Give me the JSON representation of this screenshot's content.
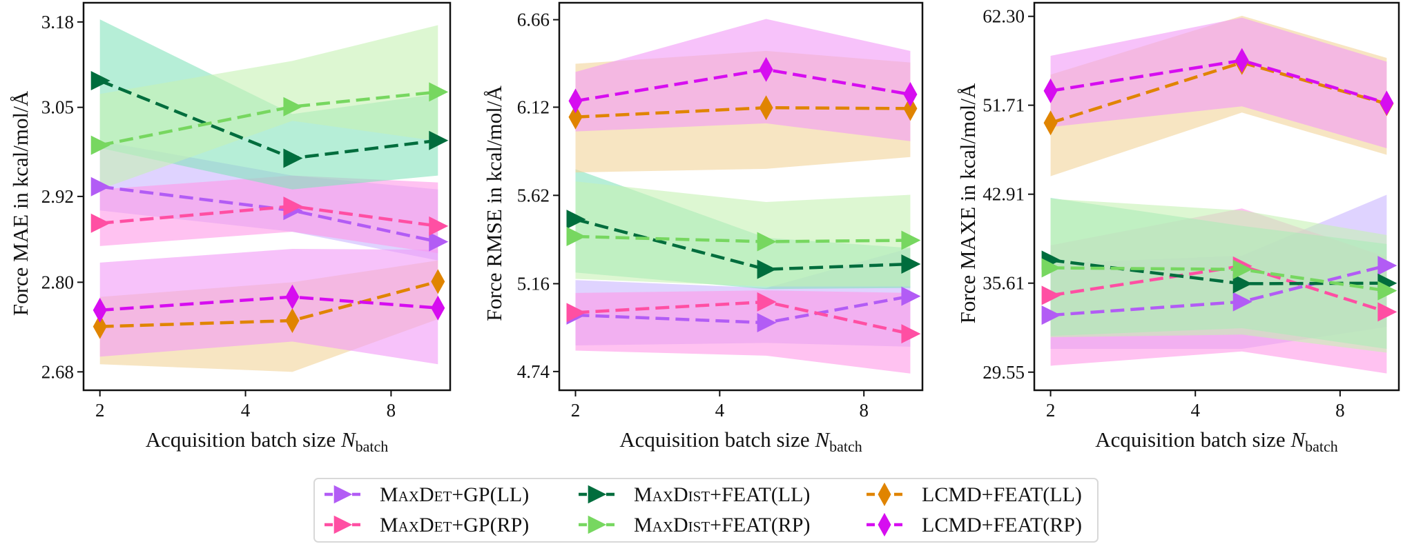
{
  "chart_data": [
    {
      "type": "line",
      "xlabel": {
        "text": "Acquisition batch size ",
        "var": "N",
        "sub": "batch"
      },
      "ylabel": "Force MAE in kcal/mol/Å",
      "x": [
        2,
        5,
        10
      ],
      "xscale": "log",
      "yscale": "log",
      "xticks": [
        "2",
        "4",
        "8"
      ],
      "yticks": [
        "3.18",
        "3.05",
        "2.92",
        "2.80",
        "2.68"
      ],
      "xlim": [
        1.85,
        10.6
      ],
      "ylim": [
        2.656,
        3.21
      ],
      "grid": false,
      "series": [
        {
          "name": "MaxDet+GP(LL)",
          "values": [
            2.934,
            2.9,
            2.856
          ],
          "lower": [
            2.9,
            2.87,
            2.83
          ],
          "upper": [
            3.0,
            2.95,
            2.93
          ]
        },
        {
          "name": "MaxDet+GP(RP)",
          "values": [
            2.882,
            2.906,
            2.878
          ],
          "lower": [
            2.85,
            2.87,
            2.84
          ],
          "upper": [
            2.93,
            2.95,
            2.94
          ]
        },
        {
          "name": "MaxDist+FEAT(LL)",
          "values": [
            3.09,
            2.975,
            3.001
          ],
          "lower": [
            2.99,
            2.93,
            2.95
          ],
          "upper": [
            3.184,
            3.04,
            3.07
          ]
        },
        {
          "name": "MaxDist+FEAT(RP)",
          "values": [
            2.994,
            3.051,
            3.073
          ],
          "lower": [
            2.93,
            3.03,
            3.0
          ],
          "upper": [
            3.07,
            3.12,
            3.175
          ]
        },
        {
          "name": "LCMD+FEAT(LL)",
          "values": [
            2.74,
            2.748,
            2.801
          ],
          "lower": [
            2.69,
            2.68,
            2.75
          ],
          "upper": [
            2.78,
            2.8,
            2.83
          ]
        },
        {
          "name": "LCMD+FEAT(RP)",
          "values": [
            2.762,
            2.78,
            2.765
          ],
          "lower": [
            2.7,
            2.72,
            2.69
          ],
          "upper": [
            2.827,
            2.846,
            2.845
          ]
        }
      ]
    },
    {
      "type": "line",
      "xlabel": {
        "text": "Acquisition batch size ",
        "var": "N",
        "sub": "batch"
      },
      "ylabel": "Force RMSE in kcal/mol/Å",
      "x": [
        2,
        5,
        10
      ],
      "xscale": "log",
      "yscale": "log",
      "xticks": [
        "2",
        "4",
        "8"
      ],
      "yticks": [
        "6.66",
        "6.12",
        "5.62",
        "5.16",
        "4.74"
      ],
      "xlim": [
        1.85,
        10.6
      ],
      "ylim": [
        4.655,
        6.77
      ],
      "grid": false,
      "series": [
        {
          "name": "MaxDet+GP(LL)",
          "values": [
            5.006,
            4.969,
            5.098
          ],
          "lower": [
            4.861,
            4.873,
            4.855
          ],
          "upper": [
            5.178,
            5.139,
            5.341
          ]
        },
        {
          "name": "MaxDet+GP(RP)",
          "values": [
            5.018,
            5.07,
            4.916
          ],
          "lower": [
            4.837,
            4.813,
            4.731
          ],
          "upper": [
            5.114,
            5.127,
            5.114
          ]
        },
        {
          "name": "MaxDist+FEAT(LL)",
          "values": [
            5.491,
            5.232,
            5.259
          ],
          "lower": [
            5.216,
            5.133,
            5.139
          ],
          "upper": [
            5.764,
            5.394,
            5.341
          ]
        },
        {
          "name": "MaxDist+FEAT(RP)",
          "values": [
            5.401,
            5.374,
            5.381
          ],
          "lower": [
            5.184,
            5.146,
            5.146
          ],
          "upper": [
            5.696,
            5.584,
            5.623
          ]
        },
        {
          "name": "LCMD+FEAT(LL)",
          "values": [
            6.062,
            6.117,
            6.112
          ],
          "lower": [
            5.746,
            5.766,
            5.832
          ],
          "upper": [
            6.382,
            6.462,
            6.39
          ]
        },
        {
          "name": "LCMD+FEAT(RP)",
          "values": [
            6.157,
            6.347,
            6.196
          ],
          "lower": [
            5.978,
            6.025,
            5.922
          ],
          "upper": [
            6.332,
            6.665,
            6.462
          ]
        }
      ]
    },
    {
      "type": "line",
      "xlabel": {
        "text": "Acquisition batch size ",
        "var": "N",
        "sub": "batch"
      },
      "ylabel": "Force MAXE in kcal/mol/Å",
      "x": [
        2,
        5,
        10
      ],
      "xscale": "log",
      "yscale": "log",
      "xticks": [
        "2",
        "4",
        "8"
      ],
      "yticks": [
        "62.30",
        "51.71",
        "42.91",
        "35.61",
        "29.55"
      ],
      "xlim": [
        1.85,
        10.6
      ],
      "ylim": [
        28.45,
        64.1
      ],
      "grid": false,
      "series": [
        {
          "name": "MaxDet+GP(LL)",
          "values": [
            33.3,
            34.25,
            36.95
          ],
          "lower": [
            31.03,
            31.03,
            32.49
          ],
          "upper": [
            37.11,
            37.72,
            42.86
          ]
        },
        {
          "name": "MaxDet+GP(RP)",
          "values": [
            34.71,
            36.91,
            33.53
          ],
          "lower": [
            29.95,
            30.86,
            29.47
          ],
          "upper": [
            38.55,
            41.65,
            37.62
          ]
        },
        {
          "name": "MaxDist+FEAT(LL)",
          "values": [
            37.37,
            35.57,
            35.61
          ],
          "lower": [
            31.88,
            32.4,
            31.03
          ],
          "upper": [
            42.58,
            40.15,
            38.66
          ]
        },
        {
          "name": "MaxDist+FEAT(RP)",
          "values": [
            36.77,
            36.65,
            35.05
          ],
          "lower": [
            31.79,
            31.97,
            30.78
          ],
          "upper": [
            42.5,
            41.47,
            39.39
          ]
        },
        {
          "name": "LCMD+FEAT(LL)",
          "values": [
            49.83,
            56.55,
            51.87
          ],
          "lower": [
            44.56,
            50.92,
            46.61
          ],
          "upper": [
            55.13,
            62.37,
            57.1
          ]
        },
        {
          "name": "LCMD+FEAT(RP)",
          "values": [
            53.29,
            56.8,
            51.95
          ],
          "lower": [
            49.4,
            51.59,
            47.25
          ],
          "upper": [
            57.35,
            62.13,
            56.65
          ]
        }
      ]
    }
  ],
  "styles": [
    {
      "name": "MaxDet+GP(LL)",
      "color": "#b25cf5",
      "band": "#c9b6ff",
      "marker": "triangle-right"
    },
    {
      "name": "MaxDet+GP(RP)",
      "color": "#ff4fa3",
      "band": "#ff9ae8",
      "marker": "triangle-right"
    },
    {
      "name": "MaxDist+FEAT(LL)",
      "color": "#006d3d",
      "band": "#86e3bd",
      "marker": "triangle-right"
    },
    {
      "name": "MaxDist+FEAT(RP)",
      "color": "#77d760",
      "band": "#c6f1b4",
      "marker": "triangle-right"
    },
    {
      "name": "LCMD+FEAT(LL)",
      "color": "#e08400",
      "band": "#f2d39a",
      "marker": "thin-diamond"
    },
    {
      "name": "LCMD+FEAT(RP)",
      "color": "#d60df0",
      "band": "#f29af7",
      "marker": "thin-diamond"
    }
  ],
  "legend": {
    "placement": "bottom",
    "entries": [
      "MaxDet+GP(LL)",
      "MaxDist+FEAT(LL)",
      "LCMD+FEAT(LL)",
      "MaxDet+GP(RP)",
      "MaxDist+FEAT(RP)",
      "LCMD+FEAT(RP)"
    ]
  }
}
